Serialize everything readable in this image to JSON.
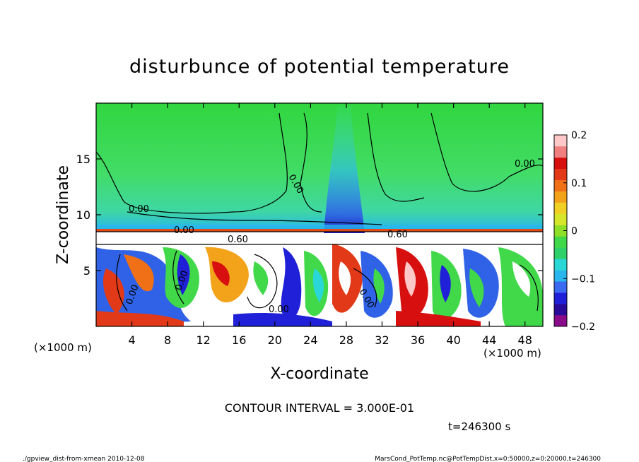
{
  "chart_data": {
    "type": "heatmap",
    "title": "disturbunce of potential temperature",
    "xlabel": "X-coordinate",
    "ylabel": "Z-coordinate",
    "x_unit": "(×1000 m)",
    "xlim": [
      0,
      50
    ],
    "ylim": [
      0,
      20
    ],
    "x_ticks": [
      4,
      8,
      12,
      16,
      20,
      24,
      28,
      32,
      36,
      40,
      44,
      48
    ],
    "y_ticks": [
      5,
      10,
      15
    ],
    "colorbar": {
      "ticks": [
        0.2,
        0.1,
        0,
        -0.1,
        -0.2
      ],
      "tick_labels": [
        "0.2",
        "0.1",
        "0",
        "−0.1",
        "−0.2"
      ],
      "range": [
        -0.2,
        0.2
      ],
      "colors": [
        "#8a0b8a",
        "#2a0b99",
        "#2020d8",
        "#3a6af0",
        "#28b6ec",
        "#2ad7d7",
        "#2fcf6a",
        "#41d94a",
        "#8fdf28",
        "#d6e62a",
        "#f0d023",
        "#f3a31a",
        "#f07018",
        "#e23a18",
        "#d80f0f",
        "#f08080",
        "#ffc8c8"
      ]
    },
    "contour_labels": [
      "0.00",
      "0.00",
      "0.00",
      "0.00",
      "0.60",
      "0.60",
      "0.00",
      "0.00",
      "0.00",
      "0.00"
    ],
    "contour_interval_text": "CONTOUR INTERVAL = 3.000E-01",
    "time_text": "t=246300 s"
  },
  "footer": {
    "left": "./gpview_dist-from-xmean  2010-12-08",
    "right": "MarsCond_PotTemp.nc@PotTempDist,x=0:50000,z=0:20000,t=246300"
  }
}
